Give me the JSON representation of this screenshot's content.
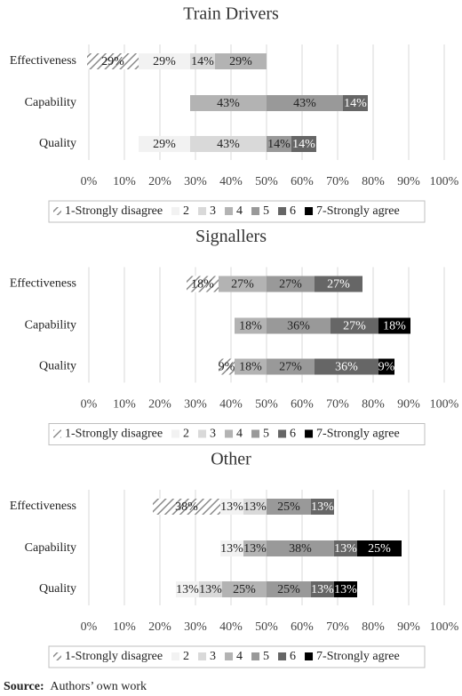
{
  "chart_data": [
    {
      "type": "diverging-bar",
      "title": "Train Drivers",
      "categories": [
        "Effectiveness",
        "Capability",
        "Quality"
      ],
      "xlim": [
        0,
        100
      ],
      "xticks": [
        {
          "value": 0,
          "label": "0%"
        },
        {
          "value": 10,
          "label": "10%"
        },
        {
          "value": 20,
          "label": "20%"
        },
        {
          "value": 30,
          "label": "30%"
        },
        {
          "value": 40,
          "label": "40%"
        },
        {
          "value": 50,
          "label": "50%"
        },
        {
          "value": 60,
          "label": "60%"
        },
        {
          "value": 70,
          "label": "70%"
        },
        {
          "value": 80,
          "label": "80%"
        },
        {
          "value": 90,
          "label": "90%"
        },
        {
          "value": 100,
          "label": "100%"
        }
      ],
      "grid": true,
      "legend": "bottom",
      "series": [
        {
          "name": "1-Strongly disagree",
          "color": "#7f7f7f",
          "pattern": "hatch",
          "values": [
            29,
            null,
            null
          ],
          "value_labels": [
            "29%",
            null,
            null
          ]
        },
        {
          "name": "2",
          "color": "#f2f2f2",
          "values": [
            29,
            null,
            29
          ],
          "value_labels": [
            "29%",
            null,
            "29%"
          ]
        },
        {
          "name": "3",
          "color": "#d9d9d9",
          "values": [
            14,
            null,
            43
          ],
          "value_labels": [
            "14%",
            null,
            "43%"
          ]
        },
        {
          "name": "4",
          "color": "#b3b3b3",
          "values": [
            29,
            43,
            null
          ],
          "value_labels": [
            "29%",
            "43%",
            null
          ]
        },
        {
          "name": "5",
          "color": "#999999",
          "values": [
            null,
            43,
            14
          ],
          "value_labels": [
            null,
            "43%",
            "14%"
          ]
        },
        {
          "name": "6",
          "color": "#666666",
          "values": [
            null,
            14,
            14
          ],
          "value_labels": [
            null,
            "14%",
            "14%"
          ]
        },
        {
          "name": "7-Strongly agree",
          "color": "#000000",
          "values": [
            null,
            null,
            null
          ],
          "value_labels": [
            null,
            null,
            null
          ]
        }
      ]
    },
    {
      "type": "diverging-bar",
      "title": "Signallers",
      "categories": [
        "Effectiveness",
        "Capability",
        "Quality"
      ],
      "xlim": [
        0,
        100
      ],
      "xticks": [
        {
          "value": 0,
          "label": "0%"
        },
        {
          "value": 10,
          "label": "10%"
        },
        {
          "value": 20,
          "label": "20%"
        },
        {
          "value": 30,
          "label": "30%"
        },
        {
          "value": 40,
          "label": "40%"
        },
        {
          "value": 50,
          "label": "50%"
        },
        {
          "value": 60,
          "label": "60%"
        },
        {
          "value": 70,
          "label": "70%"
        },
        {
          "value": 80,
          "label": "80%"
        },
        {
          "value": 90,
          "label": "90%"
        },
        {
          "value": 100,
          "label": "100%"
        }
      ],
      "grid": true,
      "legend": "bottom",
      "series": [
        {
          "name": "1-Strongly disagree",
          "color": "#7f7f7f",
          "pattern": "hatch",
          "values": [
            18,
            null,
            9
          ],
          "value_labels": [
            "18%",
            null,
            "9%"
          ]
        },
        {
          "name": "2",
          "color": "#f2f2f2",
          "values": [
            null,
            null,
            null
          ],
          "value_labels": [
            null,
            null,
            null
          ]
        },
        {
          "name": "3",
          "color": "#d9d9d9",
          "values": [
            null,
            null,
            null
          ],
          "value_labels": [
            null,
            null,
            null
          ]
        },
        {
          "name": "4",
          "color": "#b3b3b3",
          "values": [
            27,
            18,
            18
          ],
          "value_labels": [
            "27%",
            "18%",
            "18%"
          ]
        },
        {
          "name": "5",
          "color": "#999999",
          "values": [
            27,
            36,
            27
          ],
          "value_labels": [
            "27%",
            "36%",
            "27%"
          ]
        },
        {
          "name": "6",
          "color": "#666666",
          "values": [
            27,
            27,
            36
          ],
          "value_labels": [
            "27%",
            "27%",
            "36%"
          ]
        },
        {
          "name": "7-Strongly agree",
          "color": "#000000",
          "values": [
            null,
            18,
            9
          ],
          "value_labels": [
            null,
            "18%",
            "9%"
          ]
        }
      ]
    },
    {
      "type": "diverging-bar",
      "title": "Other",
      "categories": [
        "Effectiveness",
        "Capability",
        "Quality"
      ],
      "xlim": [
        0,
        100
      ],
      "xticks": [
        {
          "value": 0,
          "label": "0%"
        },
        {
          "value": 10,
          "label": "10%"
        },
        {
          "value": 20,
          "label": "20%"
        },
        {
          "value": 30,
          "label": "30%"
        },
        {
          "value": 40,
          "label": "40%"
        },
        {
          "value": 50,
          "label": "50%"
        },
        {
          "value": 60,
          "label": "60%"
        },
        {
          "value": 70,
          "label": "70%"
        },
        {
          "value": 80,
          "label": "80%"
        },
        {
          "value": 90,
          "label": "90%"
        },
        {
          "value": 100,
          "label": "100%"
        }
      ],
      "grid": true,
      "legend": "bottom",
      "series": [
        {
          "name": "1-Strongly disagree",
          "color": "#7f7f7f",
          "pattern": "hatch",
          "values": [
            38,
            null,
            null
          ],
          "value_labels": [
            "38%",
            null,
            null
          ]
        },
        {
          "name": "2",
          "color": "#f2f2f2",
          "values": [
            13,
            13,
            13
          ],
          "value_labels": [
            "13%",
            "13%",
            "13%"
          ]
        },
        {
          "name": "3",
          "color": "#d9d9d9",
          "values": [
            13,
            null,
            13
          ],
          "value_labels": [
            "13%",
            null,
            "13%"
          ]
        },
        {
          "name": "4",
          "color": "#b3b3b3",
          "values": [
            null,
            13,
            25
          ],
          "value_labels": [
            null,
            "13%",
            "25%"
          ]
        },
        {
          "name": "5",
          "color": "#999999",
          "values": [
            25,
            38,
            25
          ],
          "value_labels": [
            "25%",
            "38%",
            "25%"
          ]
        },
        {
          "name": "6",
          "color": "#666666",
          "values": [
            13,
            13,
            13
          ],
          "value_labels": [
            "13%",
            "13%",
            "13%"
          ]
        },
        {
          "name": "7-Strongly agree",
          "color": "#000000",
          "values": [
            null,
            25,
            13
          ],
          "value_labels": [
            null,
            "25%",
            "13%"
          ]
        }
      ]
    }
  ],
  "source": {
    "label": "Source:",
    "text": "Authors’ own work"
  }
}
